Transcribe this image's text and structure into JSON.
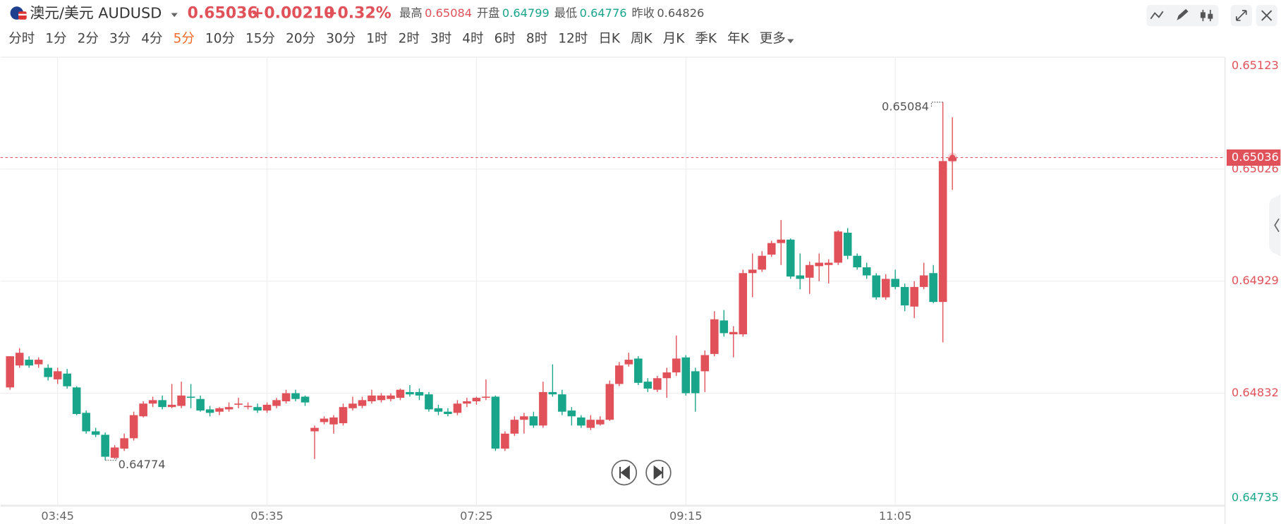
{
  "header": {
    "symbol": "澳元/美元 AUDUSD",
    "price": 0.65036,
    "change": "+0.00210",
    "change_pct": "+0.32%",
    "stats": [
      {
        "label": "最高",
        "value": 0.65084,
        "color": "#e0515a"
      },
      {
        "label": "开盘",
        "value": 0.64799,
        "color": "#18a58a"
      },
      {
        "label": "最低",
        "value": 0.64776,
        "color": "#18a58a"
      },
      {
        "label": "昨收",
        "value": 0.64826,
        "color": "#555555"
      }
    ],
    "periods": [
      "分时",
      "1分",
      "2分",
      "3分",
      "4分",
      "5分",
      "10分",
      "15分",
      "20分",
      "30分",
      "1时",
      "2时",
      "3时",
      "4时",
      "6时",
      "8时",
      "12时",
      "日K",
      "周K",
      "月K",
      "季K",
      "年K",
      "更多"
    ],
    "active_period": 5
  },
  "chart_data": {
    "type": "candlestick",
    "up_color": "#e0515a",
    "down_color": "#18a58a",
    "grid": true,
    "categories": [
      null,
      null,
      null,
      null,
      null,
      "03:45",
      null,
      null,
      null,
      null,
      null,
      null,
      null,
      null,
      null,
      null,
      null,
      null,
      null,
      null,
      null,
      null,
      null,
      null,
      null,
      null,
      null,
      "05:35",
      null,
      null,
      null,
      null,
      null,
      null,
      null,
      null,
      null,
      null,
      null,
      null,
      null,
      null,
      null,
      null,
      null,
      null,
      null,
      null,
      null,
      "07:25",
      null,
      null,
      null,
      null,
      null,
      null,
      null,
      null,
      null,
      null,
      null,
      null,
      null,
      null,
      null,
      null,
      null,
      null,
      null,
      null,
      null,
      "09:15",
      null,
      null,
      null,
      null,
      null,
      null,
      null,
      null,
      null,
      null,
      null,
      null,
      null,
      null,
      null,
      null,
      null,
      null,
      null,
      null,
      null,
      "11:05",
      null,
      null,
      null,
      null,
      null,
      null
    ],
    "open": [
      0.64837,
      0.64856,
      0.64861,
      0.64857,
      0.64854,
      0.64844,
      0.64849,
      0.64837,
      0.64815,
      0.64799,
      0.64796,
      0.64776,
      0.64784,
      0.64793,
      0.64812,
      0.64823,
      0.64826,
      0.6482,
      0.64821,
      0.64829,
      0.64827,
      0.64818,
      0.64816,
      0.64818,
      0.64822,
      0.6482,
      0.6482,
      0.64817,
      0.64821,
      0.64825,
      0.64832,
      0.64829,
      0.64799,
      0.64807,
      0.64805,
      0.64806,
      0.64819,
      0.64821,
      0.64825,
      0.64826,
      0.64827,
      0.64828,
      0.64833,
      0.64833,
      0.64831,
      0.64819,
      0.64816,
      0.64815,
      0.64823,
      0.64825,
      0.64828,
      0.64829,
      0.64784,
      0.64797,
      0.64809,
      0.64812,
      0.64804,
      0.64833,
      0.64831,
      0.64817,
      0.64811,
      0.64802,
      0.64805,
      0.64809,
      0.6484,
      0.64857,
      0.64862,
      0.64842,
      0.64835,
      0.64845,
      0.6485,
      0.64863,
      0.64851,
      0.64851,
      0.64866,
      0.64895,
      0.64883,
      0.64883,
      0.64936,
      0.64939,
      0.64952,
      0.64962,
      0.64965,
      0.64934,
      0.64932,
      0.64942,
      0.64943,
      0.64945,
      0.64971,
      0.64951,
      0.64941,
      0.64934,
      0.64915,
      0.64931,
      0.64924,
      0.64907,
      0.64924,
      0.64936,
      0.64911,
      0.65033
    ],
    "high": [
      0.64864,
      0.64871,
      0.64864,
      0.64863,
      0.64857,
      0.64854,
      0.64853,
      0.64838,
      0.64817,
      0.64802,
      0.64798,
      0.64787,
      0.64797,
      0.64816,
      0.64825,
      0.64829,
      0.6483,
      0.6484,
      0.64842,
      0.6484,
      0.6483,
      0.64821,
      0.6482,
      0.64824,
      0.64828,
      0.64824,
      0.64823,
      0.64824,
      0.64828,
      0.64835,
      0.64835,
      0.6483,
      0.64804,
      0.64812,
      0.64813,
      0.64823,
      0.64829,
      0.64829,
      0.64835,
      0.64832,
      0.64832,
      0.64836,
      0.64839,
      0.64836,
      0.64833,
      0.64822,
      0.64819,
      0.64826,
      0.64828,
      0.64829,
      0.64844,
      0.6483,
      0.64799,
      0.64812,
      0.64815,
      0.64816,
      0.64842,
      0.64857,
      0.64835,
      0.6482,
      0.64813,
      0.64813,
      0.64812,
      0.64843,
      0.64859,
      0.64867,
      0.64864,
      0.64845,
      0.64847,
      0.64854,
      0.64882,
      0.64865,
      0.64854,
      0.64869,
      0.64903,
      0.64904,
      0.6489,
      0.64939,
      0.64953,
      0.64955,
      0.64964,
      0.64982,
      0.64966,
      0.64953,
      0.64946,
      0.64953,
      0.64948,
      0.64973,
      0.64975,
      0.64953,
      0.64945,
      0.64936,
      0.64935,
      0.64939,
      0.64927,
      0.64929,
      0.64945,
      0.64943,
      0.65084,
      0.65071
    ],
    "low": [
      0.64835,
      0.64854,
      0.64854,
      0.64854,
      0.64843,
      0.6484,
      0.64836,
      0.64813,
      0.64797,
      0.64794,
      0.64774,
      0.64775,
      0.64782,
      0.64791,
      0.64811,
      0.6482,
      0.64818,
      0.64819,
      0.64819,
      0.64819,
      0.64816,
      0.64812,
      0.64813,
      0.64816,
      0.64819,
      0.64818,
      0.64815,
      0.64815,
      0.64819,
      0.64823,
      0.64825,
      0.64821,
      0.64775,
      0.64805,
      0.64797,
      0.64804,
      0.64817,
      0.64819,
      0.64823,
      0.64824,
      0.64825,
      0.64826,
      0.64829,
      0.64826,
      0.64816,
      0.64813,
      0.64812,
      0.64813,
      0.6482,
      0.64822,
      0.64826,
      0.64782,
      0.64782,
      0.64795,
      0.64797,
      0.64802,
      0.64802,
      0.64829,
      0.64813,
      0.64804,
      0.64802,
      0.648,
      0.64804,
      0.64808,
      0.64838,
      0.64855,
      0.64839,
      0.64833,
      0.64833,
      0.64828,
      0.64847,
      0.6483,
      0.64816,
      0.64833,
      0.64864,
      0.64881,
      0.64863,
      0.64881,
      0.64915,
      0.64937,
      0.6495,
      0.64943,
      0.64931,
      0.64922,
      0.64918,
      0.64929,
      0.64927,
      0.64943,
      0.64948,
      0.64939,
      0.64931,
      0.64913,
      0.64913,
      0.64922,
      0.64903,
      0.64897,
      0.64922,
      0.6491,
      0.64876,
      0.65008
    ],
    "close": [
      0.64864,
      0.64867,
      0.64856,
      0.64861,
      0.64846,
      0.64851,
      0.64838,
      0.64814,
      0.64799,
      0.64796,
      0.64777,
      0.64785,
      0.64793,
      0.64813,
      0.64823,
      0.64826,
      0.6482,
      0.64822,
      0.6483,
      0.64828,
      0.64817,
      0.64815,
      0.64819,
      0.6482,
      0.64823,
      0.64821,
      0.64817,
      0.64822,
      0.64826,
      0.64832,
      0.64827,
      0.64824,
      0.64802,
      0.6481,
      0.64811,
      0.6482,
      0.64823,
      0.64826,
      0.6483,
      0.6483,
      0.6483,
      0.64835,
      0.64831,
      0.6483,
      0.64818,
      0.64816,
      0.64814,
      0.64823,
      0.64825,
      0.64828,
      0.64829,
      0.64784,
      0.64797,
      0.64809,
      0.64812,
      0.64804,
      0.64833,
      0.64831,
      0.64816,
      0.64812,
      0.64804,
      0.64809,
      0.64809,
      0.6484,
      0.64856,
      0.64861,
      0.64841,
      0.64836,
      0.64845,
      0.6485,
      0.64862,
      0.64832,
      0.64832,
      0.64865,
      0.64896,
      0.64884,
      0.64885,
      0.64936,
      0.64939,
      0.64951,
      0.64962,
      0.64965,
      0.64933,
      0.64931,
      0.64943,
      0.64945,
      0.64945,
      0.64972,
      0.64951,
      0.64941,
      0.64934,
      0.64915,
      0.64931,
      0.64924,
      0.64908,
      0.64924,
      0.64934,
      0.64911,
      0.65033,
      0.65036
    ],
    "ylim": [
      0.64735,
      0.65123
    ],
    "yticks": [
      0.64735,
      0.64832,
      0.64929,
      0.65026,
      0.65123
    ]
  }
}
